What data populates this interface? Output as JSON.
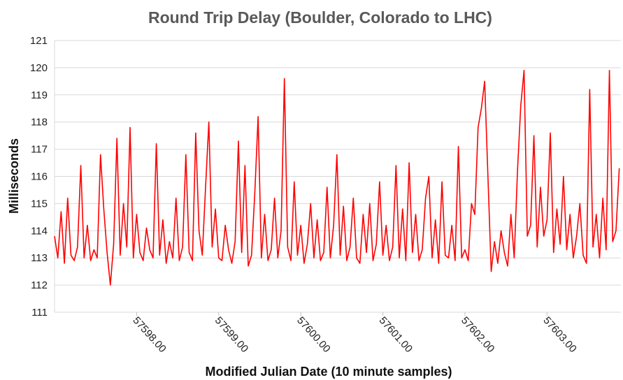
{
  "chart_data": {
    "type": "line",
    "title": "Round Trip Delay (Boulder, Colorado to LHC)",
    "x_label": "Modified Julian Date (10 minute samples)",
    "y_label": "Milliseconds",
    "color": "#ff0000",
    "grid": true,
    "xlim": [
      57597.0,
      57603.9
    ],
    "ylim": [
      111,
      121
    ],
    "yticks": [
      111,
      112,
      113,
      114,
      115,
      116,
      117,
      118,
      119,
      120,
      121
    ],
    "xticks": [
      {
        "value": 57598,
        "label": "57598.00"
      },
      {
        "value": 57599,
        "label": "57599.00"
      },
      {
        "value": 57600,
        "label": "57600.00"
      },
      {
        "value": 57601,
        "label": "57601.00"
      },
      {
        "value": 57602,
        "label": "57602.00"
      },
      {
        "value": 57603,
        "label": "57603.00"
      }
    ],
    "x": [
      57597,
      57597.04,
      57597.08,
      57597.12,
      57597.16,
      57597.2,
      57597.24,
      57597.28,
      57597.32,
      57597.36,
      57597.4,
      57597.44,
      57597.48,
      57597.52,
      57597.56,
      57597.6,
      57597.64,
      57597.68,
      57597.72,
      57597.76,
      57597.8,
      57597.84,
      57597.88,
      57597.92,
      57597.96,
      57598,
      57598.04,
      57598.08,
      57598.12,
      57598.16,
      57598.2,
      57598.24,
      57598.28,
      57598.32,
      57598.36,
      57598.4,
      57598.44,
      57598.48,
      57598.52,
      57598.56,
      57598.6,
      57598.64,
      57598.68,
      57598.72,
      57598.76,
      57598.8,
      57598.84,
      57598.88,
      57598.92,
      57598.96,
      57599,
      57599.04,
      57599.08,
      57599.12,
      57599.16,
      57599.2,
      57599.24,
      57599.28,
      57599.32,
      57599.36,
      57599.4,
      57599.44,
      57599.48,
      57599.52,
      57599.56,
      57599.6,
      57599.64,
      57599.68,
      57599.72,
      57599.76,
      57599.8,
      57599.84,
      57599.88,
      57599.92,
      57599.96,
      57600,
      57600.04,
      57600.08,
      57600.12,
      57600.16,
      57600.2,
      57600.24,
      57600.28,
      57600.32,
      57600.36,
      57600.4,
      57600.44,
      57600.48,
      57600.52,
      57600.56,
      57600.6,
      57600.64,
      57600.68,
      57600.72,
      57600.76,
      57600.8,
      57600.84,
      57600.88,
      57600.92,
      57600.96,
      57601,
      57601.04,
      57601.08,
      57601.12,
      57601.16,
      57601.2,
      57601.24,
      57601.28,
      57601.32,
      57601.36,
      57601.4,
      57601.44,
      57601.48,
      57601.52,
      57601.56,
      57601.6,
      57601.64,
      57601.68,
      57601.72,
      57601.76,
      57601.8,
      57601.84,
      57601.88,
      57601.92,
      57601.96,
      57602,
      57602.04,
      57602.08,
      57602.12,
      57602.16,
      57602.2,
      57602.24,
      57602.28,
      57602.32,
      57602.36,
      57602.4,
      57602.44,
      57602.48,
      57602.52,
      57602.56,
      57602.6,
      57602.64,
      57602.68,
      57602.72,
      57602.76,
      57602.8,
      57602.84,
      57602.88,
      57602.92,
      57602.96,
      57603,
      57603.04,
      57603.08,
      57603.12,
      57603.16,
      57603.2,
      57603.24,
      57603.28,
      57603.32,
      57603.36,
      57603.4,
      57603.44,
      57603.48,
      57603.52,
      57603.56,
      57603.6,
      57603.64,
      57603.68,
      57603.72,
      57603.76,
      57603.8,
      57603.84,
      57603.88
    ],
    "values": [
      113.8,
      113.0,
      114.7,
      112.8,
      115.2,
      113.1,
      112.9,
      113.4,
      116.4,
      113.0,
      114.2,
      112.9,
      113.3,
      113.0,
      116.8,
      114.8,
      113.2,
      112.0,
      113.5,
      117.4,
      113.1,
      115.0,
      113.4,
      117.8,
      113.0,
      114.6,
      113.2,
      112.9,
      114.1,
      113.3,
      113.0,
      117.2,
      113.1,
      114.4,
      112.8,
      113.6,
      113.0,
      115.2,
      112.9,
      113.4,
      116.8,
      113.2,
      112.9,
      117.6,
      114.0,
      113.1,
      115.6,
      118.0,
      113.4,
      114.8,
      113.0,
      112.9,
      114.2,
      113.3,
      112.8,
      113.6,
      117.3,
      113.2,
      116.4,
      112.7,
      113.1,
      115.4,
      118.2,
      113.0,
      114.6,
      112.9,
      113.3,
      115.2,
      113.0,
      114.0,
      119.6,
      113.4,
      112.9,
      115.8,
      113.1,
      114.2,
      112.8,
      113.5,
      115.0,
      113.0,
      114.4,
      112.9,
      113.2,
      115.6,
      113.0,
      114.2,
      116.8,
      113.1,
      114.9,
      112.9,
      113.4,
      115.2,
      113.0,
      112.8,
      114.6,
      113.2,
      115.0,
      112.9,
      113.5,
      115.8,
      113.1,
      114.2,
      112.9,
      113.4,
      116.4,
      113.0,
      114.8,
      112.9,
      116.5,
      113.2,
      114.6,
      112.9,
      113.3,
      115.2,
      116.0,
      113.0,
      114.4,
      112.8,
      115.8,
      113.1,
      113.0,
      114.2,
      112.9,
      117.1,
      113.0,
      113.3,
      112.9,
      115.0,
      114.6,
      117.8,
      118.5,
      119.5,
      116.0,
      112.5,
      113.6,
      112.8,
      114.0,
      113.2,
      112.7,
      114.6,
      113.0,
      116.2,
      118.6,
      119.9,
      113.8,
      114.2,
      117.5,
      113.4,
      115.6,
      113.8,
      114.4,
      117.6,
      113.2,
      114.8,
      113.5,
      116.0,
      113.3,
      114.6,
      113.0,
      113.8,
      115.0,
      113.1,
      112.8,
      119.2,
      113.4,
      114.6,
      113.0,
      115.2,
      113.3,
      119.9,
      113.6,
      114.0,
      116.3
    ]
  }
}
